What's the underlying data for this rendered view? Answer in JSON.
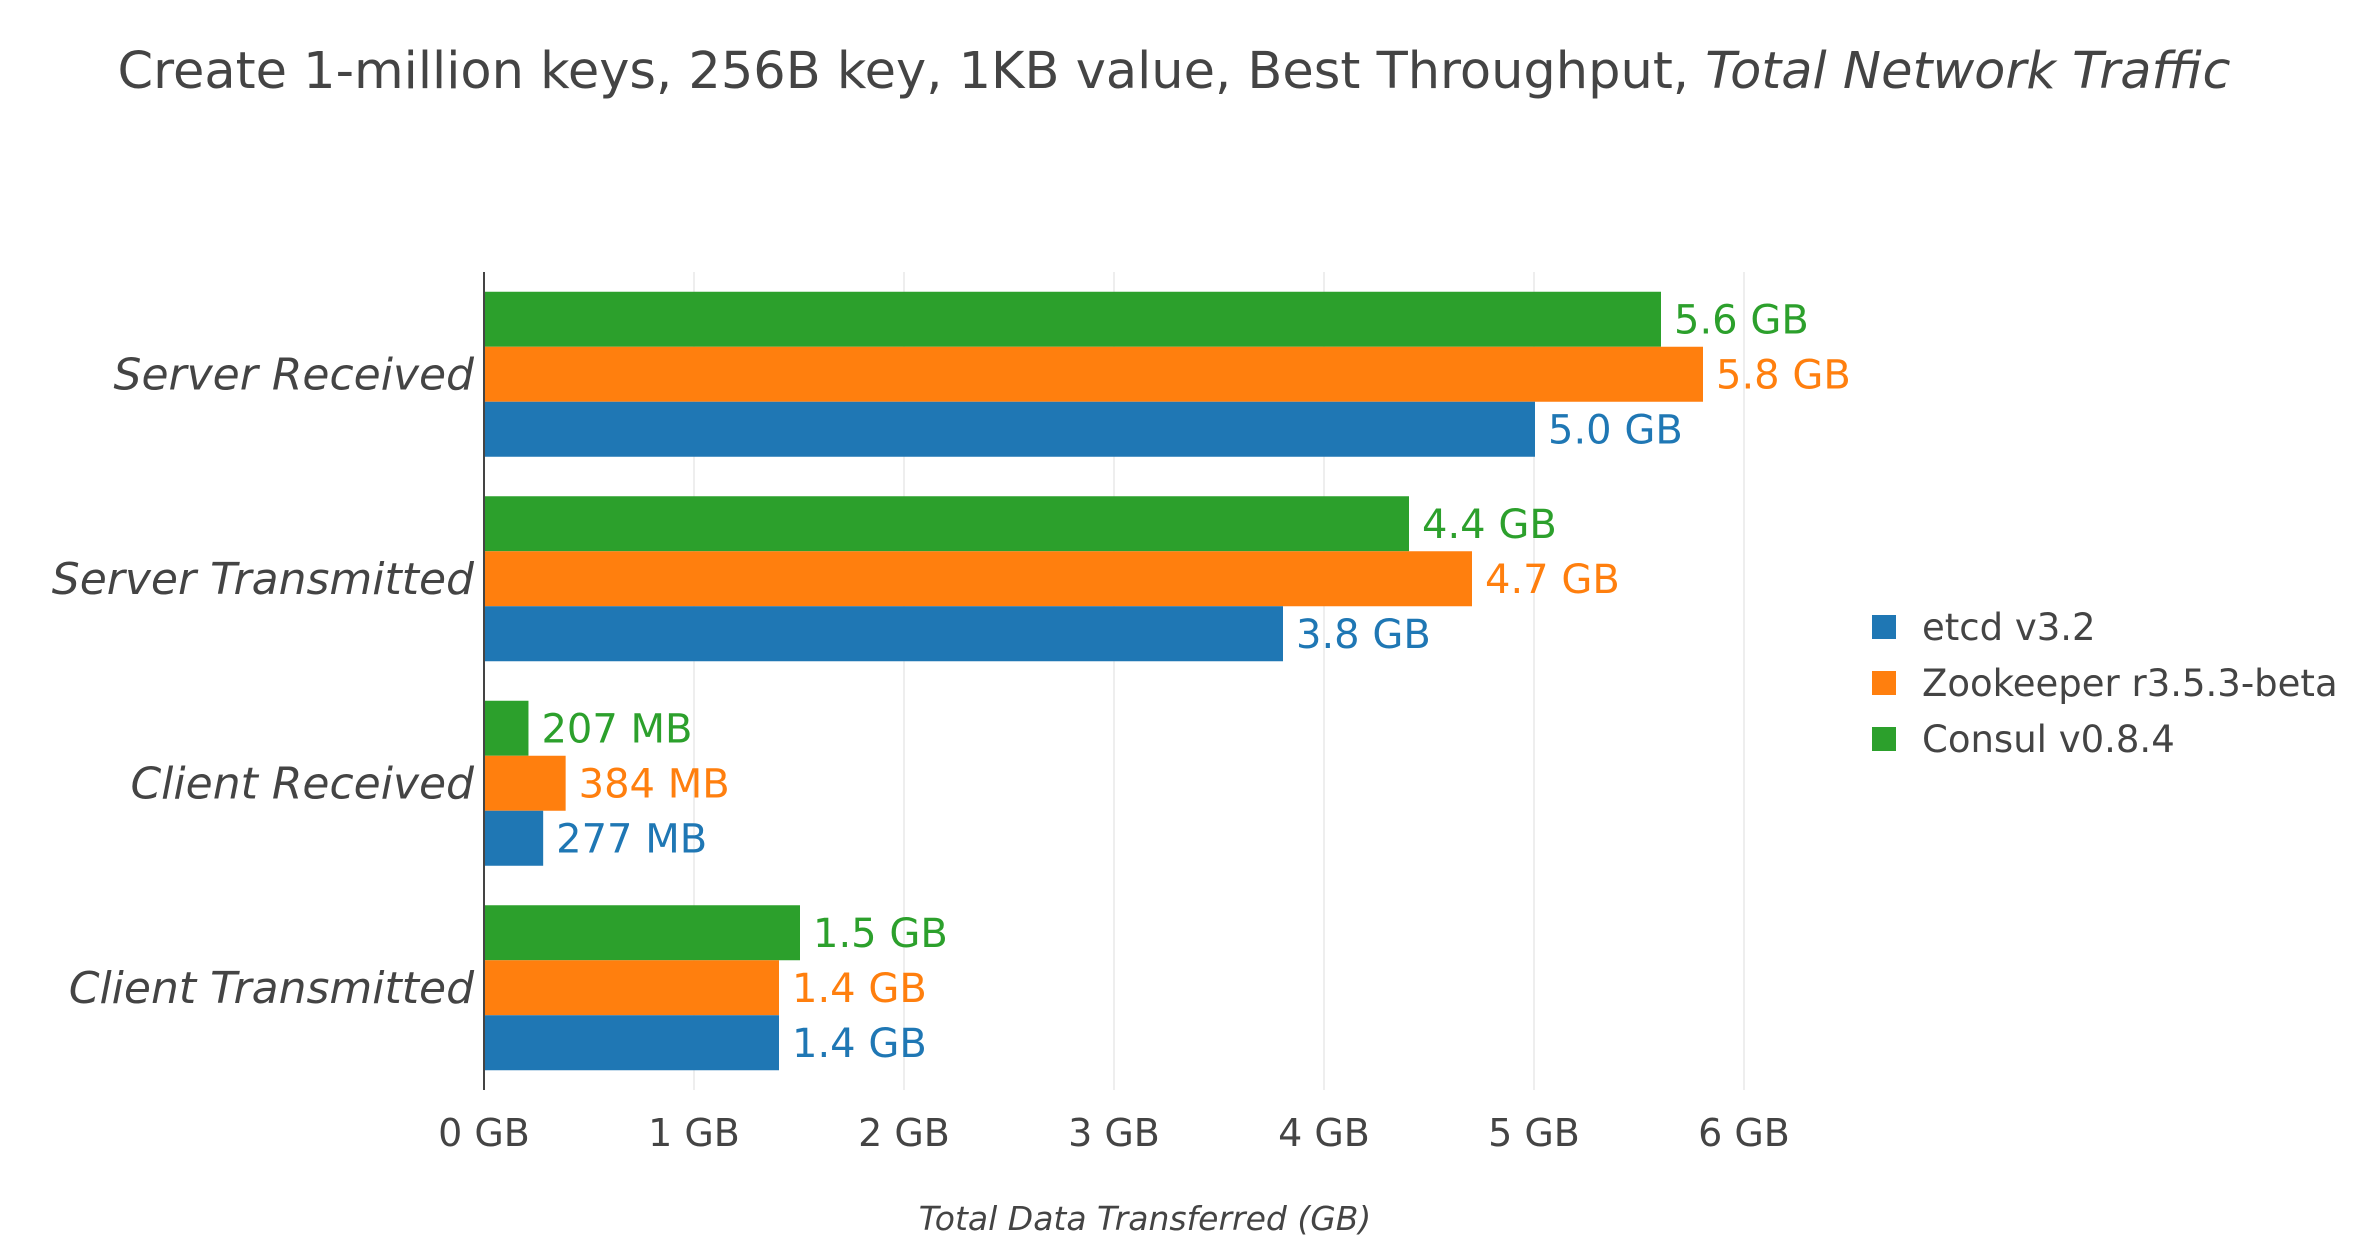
{
  "chart_data": {
    "type": "bar",
    "orientation": "horizontal",
    "title": "Create 1-million keys, 256B key, 1KB value, Best Throughput, ",
    "title_italic": "Total Network Traffic",
    "xlabel": "Total Data Transferred (GB)",
    "ylabel": "",
    "xlim": [
      0,
      6.6
    ],
    "x_ticks": [
      0,
      1,
      2,
      3,
      4,
      5,
      6
    ],
    "x_tick_labels": [
      "0 GB",
      "1 GB",
      "2 GB",
      "3 GB",
      "4 GB",
      "5 GB",
      "6 GB"
    ],
    "grid": true,
    "legend_position": "right",
    "categories": [
      "Server Received",
      "Server Transmitted",
      "Client Received",
      "Client Transmitted"
    ],
    "series": [
      {
        "name": "etcd v3.2",
        "color": "#1f77b4",
        "values": [
          5.0,
          3.8,
          0.277,
          1.4
        ],
        "labels": [
          "5.0 GB",
          "3.8 GB",
          "277 MB",
          "1.4 GB"
        ]
      },
      {
        "name": "Zookeeper r3.5.3-beta",
        "color": "#ff7f0e",
        "values": [
          5.8,
          4.7,
          0.384,
          1.4
        ],
        "labels": [
          "5.8 GB",
          "4.7 GB",
          "384 MB",
          "1.4 GB"
        ]
      },
      {
        "name": "Consul v0.8.4",
        "color": "#2ca02c",
        "values": [
          5.6,
          4.4,
          0.207,
          1.5
        ],
        "labels": [
          "5.6 GB",
          "4.4 GB",
          "207 MB",
          "1.5 GB"
        ]
      }
    ]
  }
}
